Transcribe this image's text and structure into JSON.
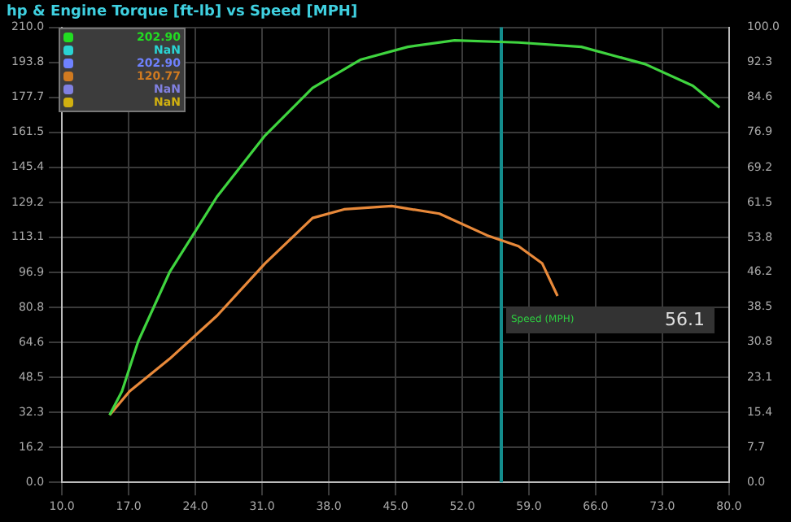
{
  "chart_data": {
    "type": "line",
    "title": "hp & Engine Torque [ft-lb] vs Speed [MPH]",
    "xlim": [
      10,
      80
    ],
    "xticks": [
      {
        "value": 10,
        "label": "10.0"
      },
      {
        "value": 17,
        "label": "17.0"
      },
      {
        "value": 24,
        "label": "24.0"
      },
      {
        "value": 31,
        "label": "31.0"
      },
      {
        "value": 38,
        "label": "38.0"
      },
      {
        "value": 45,
        "label": "45.0"
      },
      {
        "value": 52,
        "label": "52.0"
      },
      {
        "value": 59,
        "label": "59.0"
      },
      {
        "value": 66,
        "label": "66.0"
      },
      {
        "value": 73,
        "label": "73.0"
      },
      {
        "value": 80,
        "label": "80.0"
      }
    ],
    "ylim": [
      0,
      210
    ],
    "yticks": [
      {
        "value": 0,
        "label": "0.0"
      },
      16.2,
      32.3,
      48.5,
      64.6,
      80.8,
      96.9,
      113.1,
      129.2,
      145.4,
      161.5,
      177.7,
      193.8,
      {
        "value": 210,
        "label": "210.0"
      }
    ],
    "y2lim": [
      0,
      100
    ],
    "y2ticks": [
      {
        "value": 0,
        "label": "0.0"
      },
      7.7,
      15.4,
      23.1,
      30.8,
      38.5,
      46.2,
      53.8,
      61.5,
      69.2,
      76.9,
      84.6,
      92.3,
      {
        "value": 100,
        "label": "100.0"
      }
    ],
    "grid": true,
    "legend": false,
    "marker": "none",
    "line_style": "solid",
    "series": [
      {
        "color": "#3fd43f",
        "x": [
          15,
          16.3,
          18,
          21.3,
          26.3,
          31.3,
          36.3,
          41.3,
          46.3,
          51.2,
          57.9,
          64.5,
          71.2,
          76.2,
          79
        ],
        "values": [
          31,
          42,
          65,
          97,
          132,
          160,
          182,
          195,
          201,
          204,
          203,
          201,
          193,
          183,
          173
        ]
      },
      {
        "color": "#e8893a",
        "x": [
          15,
          17.1,
          21.3,
          26.3,
          31.3,
          36.3,
          39.6,
          44.6,
          49.6,
          54.6,
          57.9,
          60.4,
          62
        ],
        "values": [
          31,
          42,
          57,
          77,
          101,
          122,
          126,
          127.5,
          124,
          114,
          109,
          101,
          86
        ]
      }
    ],
    "ref_lines": [
      {
        "axis": "x",
        "value": 56.1,
        "label": "Speed (MPH)",
        "color": "#138c8c"
      }
    ],
    "annotations": [
      "56.1",
      "202.90",
      "NaN",
      "202.90",
      "120.77",
      "NaN",
      "NaN"
    ]
  }
}
